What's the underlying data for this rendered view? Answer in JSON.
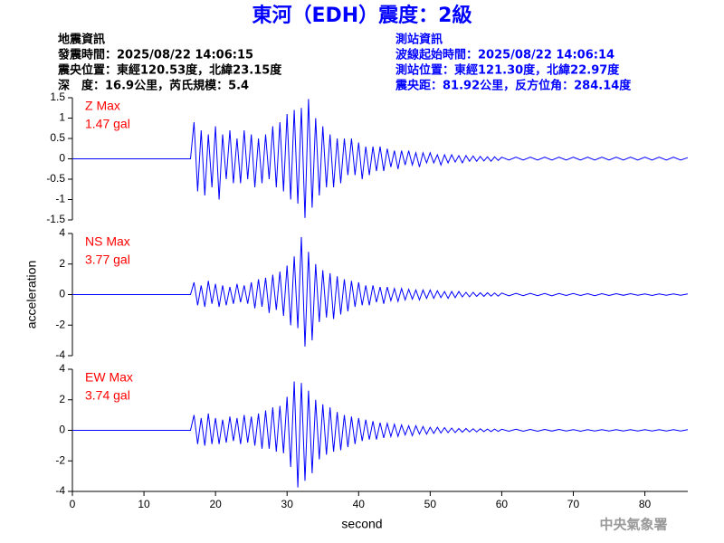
{
  "header": {
    "title": "東河（EDH）震度：2級",
    "left": [
      "地震資訊",
      "發震時間：2025/08/22 14:06:15",
      "震央位置：東經120.53度，北緯23.15度",
      "深　度：16.9公里，芮氏規模：5.4"
    ],
    "right": [
      "測站資訊",
      "波線起始時間：2025/08/22 14:06:14",
      "測站位置：東經121.30度，北緯22.97度",
      "震央距：81.92公里，反方位角：284.14度"
    ],
    "watermark": "中央氣象署"
  },
  "chart_data": [
    {
      "type": "line",
      "label": "Z Max",
      "max_label": "1.47 gal",
      "color": "#0000ff",
      "label_color": "#ff0000",
      "xlim": [
        0,
        86
      ],
      "ylim": [
        -1.5,
        1.5
      ],
      "yticks": [
        -1.5,
        -1,
        -0.5,
        0,
        0.5,
        1,
        1.5
      ],
      "x": [
        0,
        16.5,
        17,
        17.5,
        18,
        18.5,
        19,
        19.5,
        20,
        20.5,
        21,
        21.5,
        22,
        22.5,
        23,
        23.5,
        24,
        24.5,
        25,
        25.5,
        26,
        26.5,
        27,
        27.5,
        28,
        28.5,
        29,
        29.5,
        30,
        30.5,
        31,
        31.5,
        32,
        32.5,
        33,
        33.5,
        34,
        34.5,
        35,
        35.5,
        36,
        36.5,
        37,
        37.5,
        38,
        38.5,
        39,
        39.5,
        40,
        40.5,
        41,
        41.5,
        42,
        42.5,
        43,
        43.5,
        44,
        44.5,
        45,
        45.5,
        46,
        46.5,
        47,
        47.5,
        48,
        48.5,
        49,
        49.5,
        50,
        50.5,
        51,
        51.5,
        52,
        52.5,
        53,
        53.5,
        54,
        54.5,
        55,
        55.5,
        56,
        56.5,
        57,
        57.5,
        58,
        58.5,
        59,
        59.5,
        60,
        61,
        62,
        63,
        64,
        65,
        66,
        67,
        68,
        69,
        70,
        71,
        72,
        73,
        74,
        75,
        76,
        77,
        78,
        79,
        80,
        81,
        82,
        83,
        84,
        85,
        86
      ],
      "values": [
        0,
        0,
        0.9,
        -0.8,
        0.7,
        -0.9,
        0.6,
        -0.7,
        0.8,
        -1.0,
        0.6,
        -0.5,
        0.7,
        -0.6,
        0.5,
        -0.6,
        0.7,
        -0.5,
        0.6,
        -0.7,
        0.5,
        -0.6,
        0.6,
        -0.5,
        0.8,
        -0.7,
        0.9,
        -0.8,
        1.1,
        -1.0,
        1.2,
        -1.1,
        1.25,
        -1.45,
        1.47,
        -1.2,
        1.0,
        -0.9,
        0.8,
        -0.7,
        0.6,
        -0.7,
        0.5,
        -0.6,
        0.5,
        -0.4,
        0.5,
        -0.4,
        0.4,
        -0.5,
        0.3,
        -0.4,
        0.3,
        -0.3,
        0.3,
        -0.3,
        0.25,
        -0.2,
        0.2,
        -0.25,
        0.2,
        -0.15,
        0.2,
        -0.15,
        0.15,
        -0.2,
        0.15,
        -0.1,
        0.15,
        -0.1,
        0.1,
        -0.15,
        0.1,
        -0.1,
        0.1,
        -0.08,
        0.08,
        -0.1,
        0.08,
        -0.06,
        0.07,
        -0.06,
        0.06,
        -0.05,
        0.05,
        -0.06,
        0.05,
        -0.04,
        0.04,
        -0.03,
        0.04,
        -0.03,
        0.04,
        -0.03,
        0.04,
        -0.03,
        0.04,
        -0.03,
        0.04,
        -0.03,
        0.04,
        -0.03,
        0.04,
        -0.03,
        0.04,
        -0.03,
        0.04,
        -0.03,
        0.04,
        -0.03,
        0.04,
        -0.03,
        0.04,
        -0.03,
        0.03
      ]
    },
    {
      "type": "line",
      "label": "NS Max",
      "max_label": "3.77 gal",
      "color": "#0000ff",
      "label_color": "#ff0000",
      "xlim": [
        0,
        86
      ],
      "ylim": [
        -4,
        4
      ],
      "yticks": [
        -4,
        -2,
        0,
        2,
        4
      ],
      "ylabel": "acceleration",
      "x": [
        0,
        16.5,
        17,
        17.5,
        18,
        18.5,
        19,
        19.5,
        20,
        20.5,
        21,
        21.5,
        22,
        22.5,
        23,
        23.5,
        24,
        24.5,
        25,
        25.5,
        26,
        26.5,
        27,
        27.5,
        28,
        28.5,
        29,
        29.5,
        30,
        30.5,
        31,
        31.5,
        32,
        32.5,
        33,
        33.5,
        34,
        34.5,
        35,
        35.5,
        36,
        36.5,
        37,
        37.5,
        38,
        38.5,
        39,
        39.5,
        40,
        40.5,
        41,
        41.5,
        42,
        42.5,
        43,
        43.5,
        44,
        44.5,
        45,
        45.5,
        46,
        46.5,
        47,
        47.5,
        48,
        48.5,
        49,
        49.5,
        50,
        50.5,
        51,
        51.5,
        52,
        52.5,
        53,
        53.5,
        54,
        54.5,
        55,
        55.5,
        56,
        56.5,
        57,
        57.5,
        58,
        58.5,
        59,
        59.5,
        60,
        61,
        62,
        63,
        64,
        65,
        66,
        67,
        68,
        69,
        70,
        71,
        72,
        73,
        74,
        75,
        76,
        77,
        78,
        79,
        80,
        81,
        82,
        83,
        84,
        85,
        86
      ],
      "values": [
        0,
        0,
        0.8,
        -0.7,
        0.6,
        -0.8,
        0.9,
        -0.6,
        0.7,
        -0.8,
        0.6,
        -0.7,
        0.5,
        -0.6,
        0.7,
        -0.5,
        0.6,
        -0.6,
        0.8,
        -0.9,
        1.0,
        -0.8,
        1.1,
        -1.2,
        1.3,
        -1.0,
        1.5,
        -1.4,
        1.9,
        -2.0,
        2.5,
        -2.2,
        3.77,
        -3.4,
        2.8,
        -3.0,
        2.0,
        -1.8,
        1.6,
        -1.5,
        1.4,
        -1.6,
        1.2,
        -1.3,
        1.0,
        -1.1,
        0.9,
        -0.8,
        0.8,
        -0.7,
        0.6,
        -0.7,
        0.6,
        -0.5,
        0.5,
        -0.6,
        0.5,
        -0.4,
        0.4,
        -0.45,
        0.4,
        -0.35,
        0.35,
        -0.3,
        0.3,
        -0.35,
        0.3,
        -0.25,
        0.3,
        -0.25,
        0.25,
        -0.2,
        0.2,
        -0.25,
        0.2,
        -0.2,
        0.2,
        -0.15,
        0.15,
        -0.15,
        0.15,
        -0.12,
        0.12,
        -0.12,
        0.12,
        -0.1,
        0.1,
        -0.1,
        0.1,
        -0.08,
        0.08,
        -0.07,
        0.08,
        -0.07,
        0.07,
        -0.08,
        0.07,
        -0.06,
        0.07,
        -0.06,
        0.06,
        -0.07,
        0.06,
        -0.06,
        0.06,
        -0.05,
        0.06,
        -0.05,
        0.05,
        -0.06,
        0.05,
        -0.05,
        0.05,
        -0.04,
        0.04
      ]
    },
    {
      "type": "line",
      "label": "EW Max",
      "max_label": "3.74 gal",
      "color": "#0000ff",
      "label_color": "#ff0000",
      "xlim": [
        0,
        86
      ],
      "ylim": [
        -4,
        4
      ],
      "yticks": [
        -4,
        -2,
        0,
        2,
        4
      ],
      "xticks": [
        0,
        10,
        20,
        30,
        40,
        50,
        60,
        70,
        80
      ],
      "xlabel": "second",
      "x": [
        0,
        16.5,
        17,
        17.5,
        18,
        18.5,
        19,
        19.5,
        20,
        20.5,
        21,
        21.5,
        22,
        22.5,
        23,
        23.5,
        24,
        24.5,
        25,
        25.5,
        26,
        26.5,
        27,
        27.5,
        28,
        28.5,
        29,
        29.5,
        30,
        30.5,
        31,
        31.5,
        32,
        32.5,
        33,
        33.5,
        34,
        34.5,
        35,
        35.5,
        36,
        36.5,
        37,
        37.5,
        38,
        38.5,
        39,
        39.5,
        40,
        40.5,
        41,
        41.5,
        42,
        42.5,
        43,
        43.5,
        44,
        44.5,
        45,
        45.5,
        46,
        46.5,
        47,
        47.5,
        48,
        48.5,
        49,
        49.5,
        50,
        50.5,
        51,
        51.5,
        52,
        52.5,
        53,
        53.5,
        54,
        54.5,
        55,
        55.5,
        56,
        56.5,
        57,
        57.5,
        58,
        58.5,
        59,
        59.5,
        60,
        61,
        62,
        63,
        64,
        65,
        66,
        67,
        68,
        69,
        70,
        71,
        72,
        73,
        74,
        75,
        76,
        77,
        78,
        79,
        80,
        81,
        82,
        83,
        84,
        85,
        86
      ],
      "values": [
        0,
        0,
        1.0,
        -0.9,
        0.8,
        -1.0,
        1.1,
        -0.9,
        0.8,
        -0.9,
        0.7,
        -0.8,
        0.9,
        -0.7,
        0.8,
        -0.9,
        1.0,
        -0.8,
        0.9,
        -1.0,
        1.1,
        -1.2,
        1.3,
        -1.2,
        1.5,
        -1.4,
        1.6,
        -1.5,
        2.2,
        -2.4,
        3.2,
        -3.74,
        3.1,
        -3.3,
        2.6,
        -2.8,
        2.0,
        -1.9,
        1.7,
        -1.6,
        1.5,
        -1.4,
        1.2,
        -1.3,
        1.0,
        -1.1,
        0.9,
        -0.9,
        0.8,
        -0.7,
        0.7,
        -0.6,
        0.6,
        -0.6,
        0.5,
        -0.5,
        0.45,
        -0.4,
        0.4,
        -0.4,
        0.35,
        -0.3,
        0.3,
        -0.35,
        0.3,
        -0.25,
        0.25,
        -0.25,
        0.2,
        -0.2,
        0.2,
        -0.18,
        0.18,
        -0.15,
        0.15,
        -0.15,
        0.12,
        -0.12,
        0.12,
        -0.1,
        0.1,
        -0.1,
        0.1,
        -0.08,
        0.08,
        -0.08,
        0.08,
        -0.07,
        0.07,
        -0.06,
        0.07,
        -0.06,
        0.06,
        -0.06,
        0.06,
        -0.05,
        0.06,
        -0.05,
        0.05,
        -0.06,
        0.05,
        -0.05,
        0.05,
        -0.05,
        0.05,
        -0.04,
        0.05,
        -0.04,
        0.04,
        -0.05,
        0.04,
        -0.04,
        0.04,
        -0.04,
        0.04
      ]
    }
  ]
}
